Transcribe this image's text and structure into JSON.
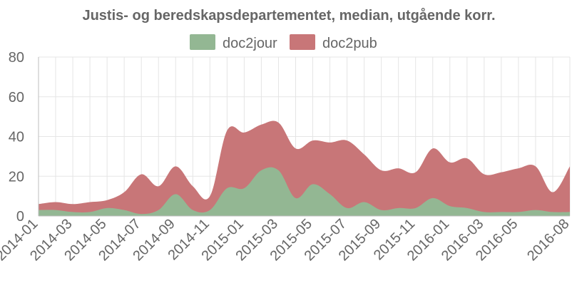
{
  "chart_data": {
    "type": "area",
    "stacked": true,
    "title": "Justis- og beredskapsdepartementet, median, utgående korr.",
    "xlabel": "",
    "ylabel": "",
    "ylim": [
      0,
      80
    ],
    "yticks": [
      0,
      20,
      40,
      60,
      80
    ],
    "grid": true,
    "legend": "top",
    "x": [
      "2014-01",
      "2014-02",
      "2014-03",
      "2014-04",
      "2014-05",
      "2014-06",
      "2014-07",
      "2014-08",
      "2014-09",
      "2014-10",
      "2014-11",
      "2014-12",
      "2015-01",
      "2015-02",
      "2015-03",
      "2015-04",
      "2015-05",
      "2015-06",
      "2015-07",
      "2015-08",
      "2015-09",
      "2015-10",
      "2015-11",
      "2015-12",
      "2016-01",
      "2016-02",
      "2016-03",
      "2016-04",
      "2016-05",
      "2016-06",
      "2016-07",
      "2016-08"
    ],
    "x_tick_labels": [
      "2014-01",
      "2014-03",
      "2014-05",
      "2014-07",
      "2014-09",
      "2014-11",
      "2015-01",
      "2015-03",
      "2015-05",
      "2015-07",
      "2015-09",
      "2015-11",
      "2016-01",
      "2016-03",
      "2016-05",
      "2016-08"
    ],
    "series": [
      {
        "name": "doc2jour",
        "color": "#93b793",
        "values": [
          3,
          3,
          2,
          2,
          4,
          3,
          1,
          3,
          11,
          3,
          3,
          14,
          14,
          23,
          23,
          9,
          16,
          11,
          4,
          7,
          3,
          4,
          4,
          9,
          5,
          4,
          2,
          2,
          2,
          3,
          2,
          2
        ]
      },
      {
        "name": "doc2pub",
        "color": "#c87678",
        "values": [
          3,
          4,
          4,
          5,
          4,
          9,
          20,
          12,
          14,
          12,
          7,
          29,
          28,
          23,
          24,
          25,
          22,
          26,
          34,
          24,
          20,
          20,
          18,
          25,
          22,
          25,
          19,
          20,
          22,
          22,
          10,
          23
        ]
      }
    ]
  }
}
